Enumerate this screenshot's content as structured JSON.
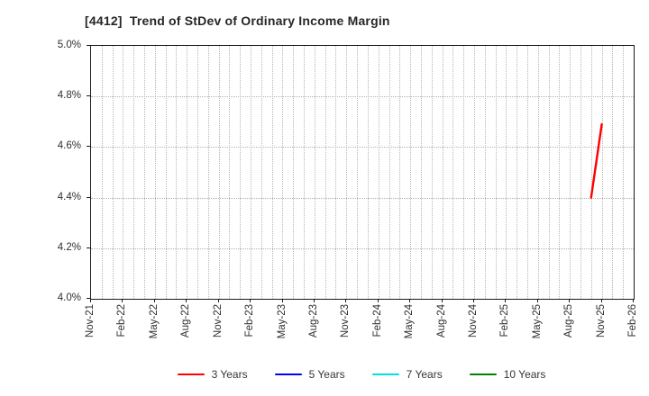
{
  "page": {
    "background": "#ffffff"
  },
  "chart_data": {
    "type": "line",
    "title": "[4412]  Trend of StDev of Ordinary Income Margin",
    "title_color": "#262626",
    "xlabel": "",
    "ylabel": "",
    "ylim": [
      4.0,
      5.0
    ],
    "ytick_labels": [
      "4.0%",
      "4.2%",
      "4.4%",
      "4.6%",
      "4.8%",
      "5.0%"
    ],
    "ytick_values": [
      4.0,
      4.2,
      4.4,
      4.6,
      4.8,
      5.0
    ],
    "x_start_month": "Nov-21",
    "x_end_month": "Feb-26",
    "xtick_labels": [
      "Nov-21",
      "Feb-22",
      "May-22",
      "Aug-22",
      "Nov-22",
      "Feb-23",
      "May-23",
      "Aug-23",
      "Nov-23",
      "Feb-24",
      "May-24",
      "Aug-24",
      "Nov-24",
      "Feb-25",
      "May-25",
      "Aug-25",
      "Nov-25",
      "Feb-26"
    ],
    "grid": {
      "show": true,
      "style": "dotted",
      "color": "#b5b5b5",
      "vertical_interval": "monthly",
      "horizontal_interval": 0.2
    },
    "axis_color": "#1a1a1a",
    "legend_position": "bottom-center",
    "series": [
      {
        "name": "3 Years",
        "color": "#ff0000",
        "points": [
          {
            "x": "Oct-25",
            "y": 4.4
          },
          {
            "x": "Nov-25",
            "y": 4.69
          }
        ]
      },
      {
        "name": "5 Years",
        "color": "#0000ff",
        "points": []
      },
      {
        "name": "7 Years",
        "color": "#00e0e0",
        "points": []
      },
      {
        "name": "10 Years",
        "color": "#008000",
        "points": []
      }
    ]
  }
}
